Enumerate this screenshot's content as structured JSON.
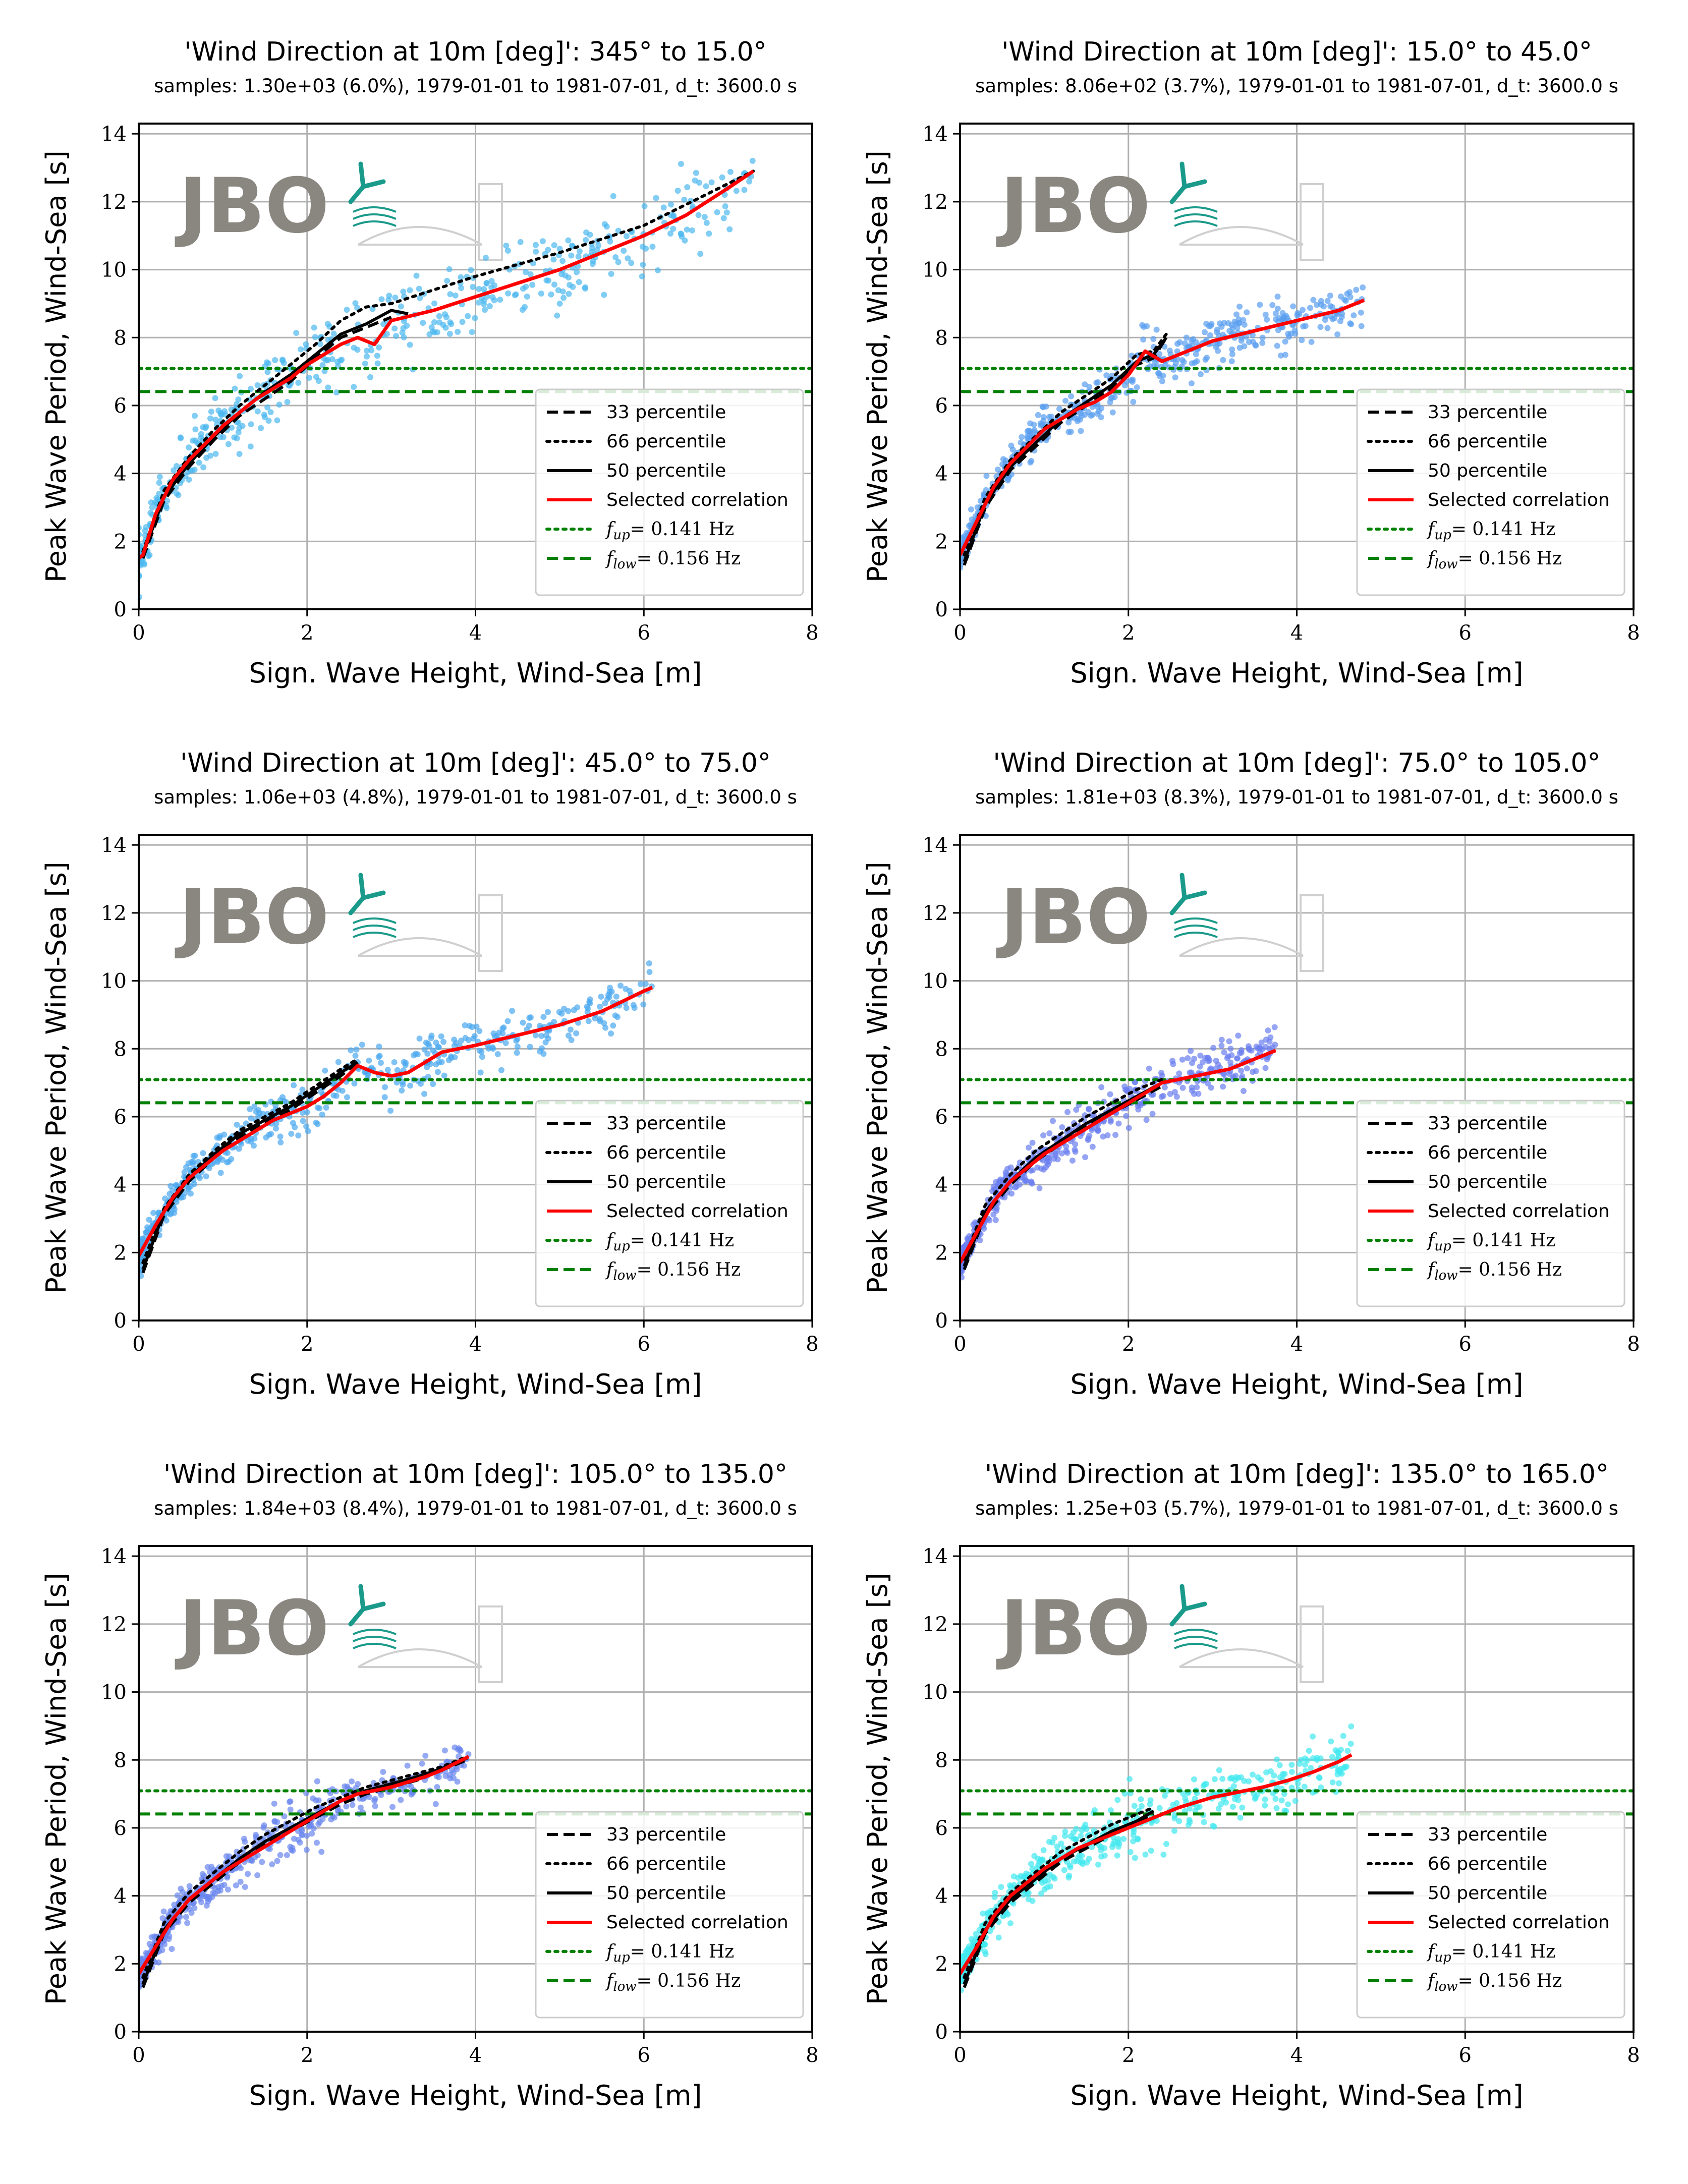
{
  "figure": {
    "common": {
      "xlabel": "Sign. Wave Height, Wind-Sea [m]",
      "ylabel": "Peak Wave Period, Wind-Sea [s]",
      "xlim": [
        0,
        8
      ],
      "ylim": [
        0,
        14.3
      ],
      "xticks": [
        "0",
        "2",
        "4",
        "6",
        "8"
      ],
      "yticks": [
        "0",
        "2",
        "4",
        "6",
        "8",
        "10",
        "12",
        "14"
      ],
      "grid": true,
      "legend_position": "lower right",
      "legend": [
        {
          "label": "33 percentile",
          "style": "dashed",
          "color": "#000000"
        },
        {
          "label": "66 percentile",
          "style": "dotted",
          "color": "#000000"
        },
        {
          "label": "50 percentile",
          "style": "solid",
          "color": "#000000"
        },
        {
          "label": "Selected correlation",
          "style": "solid",
          "color": "#ff0000"
        },
        {
          "label": "f_up= 0.141 Hz",
          "style": "dotted",
          "color": "#008000",
          "math": "up",
          "rest": "= 0.141 Hz"
        },
        {
          "label": "f_low= 0.156 Hz",
          "style": "dashed",
          "color": "#008000",
          "math": "low",
          "rest": "= 0.156 Hz"
        }
      ],
      "hlines": {
        "f_up_period": 7.09,
        "f_low_period": 6.41
      },
      "logo": {
        "text": "JBO",
        "color": "#8a8780",
        "accent": "#1a9a8a"
      }
    },
    "panels": [
      {
        "title": "'Wind Direction at 10m [deg]': 345° to 15.0°",
        "subtitle": "samples: 1.30e+03 (6.0%), 1979-01-01 to 1981-07-01, d_t: 3600.0 s",
        "scatter_color": "#4cb8f0",
        "scatter_spread": 0.55
      },
      {
        "title": "'Wind Direction at 10m [deg]': 15.0° to 45.0°",
        "subtitle": "samples: 8.06e+02 (3.7%), 1979-01-01 to 1981-07-01, d_t: 3600.0 s",
        "scatter_color": "#5a9ef0",
        "scatter_spread": 0.35
      },
      {
        "title": "'Wind Direction at 10m [deg]': 45.0° to 75.0°",
        "subtitle": "samples: 1.06e+03 (4.8%), 1979-01-01 to 1981-07-01, d_t: 3600.0 s",
        "scatter_color": "#4aa8f0",
        "scatter_spread": 0.35
      },
      {
        "title": "'Wind Direction at 10m [deg]': 75.0° to 105.0°",
        "subtitle": "samples: 1.81e+03 (8.3%), 1979-01-01 to 1981-07-01, d_t: 3600.0 s",
        "scatter_color": "#6a7ef0",
        "scatter_spread": 0.35
      },
      {
        "title": "'Wind Direction at 10m [deg]': 105.0° to 135.0°",
        "subtitle": "samples: 1.84e+03 (8.4%), 1979-01-01 to 1981-07-01, d_t: 3600.0 s",
        "scatter_color": "#6a86f0",
        "scatter_spread": 0.35
      },
      {
        "title": "'Wind Direction at 10m [deg]': 135.0° to 165.0°",
        "subtitle": "samples: 1.25e+03 (5.7%), 1979-01-01 to 1981-07-01, d_t: 3600.0 s",
        "scatter_color": "#40e8f0",
        "scatter_spread": 0.4
      }
    ]
  },
  "chart_data": [
    {
      "type": "scatter",
      "title": "'Wind Direction at 10m [deg]': 345° to 15.0°",
      "xlabel": "Sign. Wave Height, Wind-Sea [m]",
      "ylabel": "Peak Wave Period, Wind-Sea [s]",
      "xlim": [
        0,
        8
      ],
      "ylim": [
        0,
        14.3
      ],
      "series": [
        {
          "name": "33 percentile",
          "x": [
            0.05,
            0.3,
            0.6,
            0.9,
            1.2,
            1.5,
            1.8,
            2.1,
            2.4,
            2.7,
            3.0
          ],
          "y": [
            1.5,
            3.2,
            4.2,
            5.0,
            5.7,
            6.2,
            6.7,
            7.4,
            8.0,
            8.3,
            8.6
          ]
        },
        {
          "name": "66 percentile",
          "x": [
            0.05,
            0.3,
            0.6,
            0.9,
            1.2,
            1.5,
            1.8,
            2.1,
            2.4,
            2.7,
            3.0,
            4.0,
            5.0,
            6.0,
            7.3
          ],
          "y": [
            1.7,
            3.5,
            4.5,
            5.3,
            6.0,
            6.6,
            7.2,
            7.8,
            8.5,
            8.9,
            9.0,
            9.8,
            10.5,
            11.3,
            12.9
          ]
        },
        {
          "name": "50 percentile",
          "x": [
            0.05,
            0.3,
            0.6,
            0.9,
            1.2,
            1.5,
            1.8,
            2.1,
            2.4,
            2.7,
            3.0,
            3.2
          ],
          "y": [
            1.6,
            3.3,
            4.3,
            5.1,
            5.8,
            6.4,
            6.9,
            7.5,
            8.1,
            8.4,
            8.8,
            8.7
          ]
        },
        {
          "name": "Selected correlation",
          "x": [
            0.0,
            0.05,
            0.2,
            0.4,
            0.6,
            0.8,
            1.0,
            1.2,
            1.4,
            1.6,
            1.8,
            2.0,
            2.2,
            2.4,
            2.6,
            2.8,
            3.0,
            3.5,
            4.0,
            4.5,
            5.0,
            5.5,
            6.0,
            6.5,
            7.0,
            7.3
          ],
          "y": [
            1.5,
            1.6,
            2.8,
            3.8,
            4.4,
            4.9,
            5.4,
            5.8,
            6.2,
            6.5,
            6.8,
            7.2,
            7.5,
            7.8,
            8.0,
            7.8,
            8.5,
            8.8,
            9.2,
            9.6,
            10.0,
            10.5,
            11.0,
            11.6,
            12.4,
            12.9
          ]
        },
        {
          "name": "f_up= 0.141 Hz",
          "y_const": 7.09
        },
        {
          "name": "f_low= 0.156 Hz",
          "y_const": 6.41
        }
      ]
    },
    {
      "type": "scatter",
      "title": "'Wind Direction at 10m [deg]': 15.0° to 45.0°",
      "xlabel": "Sign. Wave Height, Wind-Sea [m]",
      "ylabel": "Peak Wave Period, Wind-Sea [s]",
      "xlim": [
        0,
        8
      ],
      "ylim": [
        0,
        14.3
      ],
      "series": [
        {
          "name": "33 percentile",
          "x": [
            0.05,
            0.3,
            0.6,
            0.9,
            1.2,
            1.5,
            1.8,
            2.1,
            2.3,
            2.45
          ],
          "y": [
            1.3,
            3.0,
            4.1,
            4.8,
            5.5,
            6.0,
            6.5,
            7.2,
            7.4,
            8.0
          ]
        },
        {
          "name": "66 percentile",
          "x": [
            0.05,
            0.3,
            0.6,
            0.9,
            1.2,
            1.5,
            1.8,
            2.1,
            2.3,
            2.45
          ],
          "y": [
            1.6,
            3.3,
            4.4,
            5.1,
            5.8,
            6.3,
            6.8,
            7.5,
            7.6,
            8.1
          ]
        },
        {
          "name": "50 percentile",
          "x": [
            0.05,
            0.3,
            0.6,
            0.9,
            1.2,
            1.5,
            1.8,
            2.1,
            2.3,
            2.45
          ],
          "y": [
            1.4,
            3.1,
            4.2,
            4.9,
            5.6,
            6.1,
            6.6,
            7.3,
            7.5,
            8.0
          ]
        },
        {
          "name": "Selected correlation",
          "x": [
            0.0,
            0.2,
            0.4,
            0.6,
            0.8,
            1.0,
            1.2,
            1.4,
            1.6,
            1.8,
            2.0,
            2.2,
            2.4,
            2.7,
            3.0,
            3.5,
            4.0,
            4.5,
            4.8
          ],
          "y": [
            1.6,
            2.6,
            3.6,
            4.3,
            4.8,
            5.3,
            5.6,
            5.9,
            6.1,
            6.4,
            6.9,
            7.6,
            7.3,
            7.6,
            7.9,
            8.2,
            8.5,
            8.8,
            9.1
          ]
        },
        {
          "name": "f_up= 0.141 Hz",
          "y_const": 7.09
        },
        {
          "name": "f_low= 0.156 Hz",
          "y_const": 6.41
        }
      ]
    },
    {
      "type": "scatter",
      "title": "'Wind Direction at 10m [deg]': 45.0° to 75.0°",
      "xlabel": "Sign. Wave Height, Wind-Sea [m]",
      "ylabel": "Peak Wave Period, Wind-Sea [s]",
      "xlim": [
        0,
        8
      ],
      "ylim": [
        0,
        14.3
      ],
      "series": [
        {
          "name": "33 percentile",
          "x": [
            0.05,
            0.3,
            0.6,
            0.9,
            1.2,
            1.5,
            1.8,
            2.1,
            2.4,
            2.6
          ],
          "y": [
            1.4,
            3.1,
            4.1,
            4.8,
            5.4,
            5.8,
            6.2,
            6.7,
            7.2,
            7.6
          ]
        },
        {
          "name": "66 percentile",
          "x": [
            0.05,
            0.3,
            0.6,
            0.9,
            1.2,
            1.5,
            1.8,
            2.1,
            2.4,
            2.6
          ],
          "y": [
            1.7,
            3.3,
            4.3,
            5.0,
            5.6,
            6.0,
            6.4,
            6.9,
            7.4,
            7.7
          ]
        },
        {
          "name": "50 percentile",
          "x": [
            0.05,
            0.3,
            0.6,
            0.9,
            1.2,
            1.5,
            1.8,
            2.1,
            2.4,
            2.6
          ],
          "y": [
            1.5,
            3.2,
            4.2,
            4.9,
            5.5,
            5.9,
            6.3,
            6.8,
            7.3,
            7.6
          ]
        },
        {
          "name": "Selected correlation",
          "x": [
            0.0,
            0.2,
            0.4,
            0.6,
            0.8,
            1.0,
            1.2,
            1.4,
            1.6,
            1.8,
            2.0,
            2.2,
            2.4,
            2.6,
            2.8,
            3.0,
            3.2,
            3.4,
            3.6,
            3.8,
            4.0,
            4.5,
            5.0,
            5.5,
            6.0,
            6.1
          ],
          "y": [
            1.9,
            2.8,
            3.6,
            4.2,
            4.6,
            5.0,
            5.3,
            5.6,
            5.9,
            6.1,
            6.3,
            6.6,
            7.0,
            7.5,
            7.3,
            7.2,
            7.3,
            7.6,
            7.9,
            8.0,
            8.1,
            8.4,
            8.7,
            9.1,
            9.7,
            9.8
          ]
        },
        {
          "name": "f_up= 0.141 Hz",
          "y_const": 7.09
        },
        {
          "name": "f_low= 0.156 Hz",
          "y_const": 6.41
        }
      ]
    },
    {
      "type": "scatter",
      "title": "'Wind Direction at 10m [deg]': 75.0° to 105.0°",
      "xlabel": "Sign. Wave Height, Wind-Sea [m]",
      "ylabel": "Peak Wave Period, Wind-Sea [s]",
      "xlim": [
        0,
        8
      ],
      "ylim": [
        0,
        14.3
      ],
      "series": [
        {
          "name": "33 percentile",
          "x": [
            0.05,
            0.3,
            0.6,
            0.9,
            1.2,
            1.5,
            1.8,
            2.1,
            2.4
          ],
          "y": [
            1.5,
            3.1,
            4.0,
            4.7,
            5.2,
            5.7,
            6.1,
            6.5,
            6.9
          ]
        },
        {
          "name": "66 percentile",
          "x": [
            0.05,
            0.3,
            0.6,
            0.9,
            1.2,
            1.5,
            1.8,
            2.1,
            2.4
          ],
          "y": [
            1.8,
            3.4,
            4.3,
            5.0,
            5.5,
            6.0,
            6.4,
            6.8,
            7.1
          ]
        },
        {
          "name": "50 percentile",
          "x": [
            0.05,
            0.3,
            0.6,
            0.9,
            1.2,
            1.5,
            1.8,
            2.1,
            2.4
          ],
          "y": [
            1.6,
            3.2,
            4.1,
            4.8,
            5.3,
            5.8,
            6.2,
            6.6,
            7.0
          ]
        },
        {
          "name": "Selected correlation",
          "x": [
            0.0,
            0.2,
            0.4,
            0.6,
            0.8,
            1.0,
            1.2,
            1.4,
            1.6,
            1.8,
            2.0,
            2.2,
            2.4,
            2.6,
            2.8,
            3.0,
            3.2,
            3.4,
            3.6,
            3.75
          ],
          "y": [
            1.7,
            2.6,
            3.5,
            4.1,
            4.5,
            4.9,
            5.2,
            5.5,
            5.8,
            6.1,
            6.4,
            6.7,
            7.0,
            7.1,
            7.2,
            7.3,
            7.4,
            7.6,
            7.8,
            7.95
          ]
        },
        {
          "name": "f_up= 0.141 Hz",
          "y_const": 7.09
        },
        {
          "name": "f_low= 0.156 Hz",
          "y_const": 6.41
        }
      ]
    },
    {
      "type": "scatter",
      "title": "'Wind Direction at 10m [deg]': 105.0° to 135.0°",
      "xlabel": "Sign. Wave Height, Wind-Sea [m]",
      "ylabel": "Peak Wave Period, Wind-Sea [s]",
      "xlim": [
        0,
        8
      ],
      "ylim": [
        0,
        14.3
      ],
      "series": [
        {
          "name": "33 percentile",
          "x": [
            0.05,
            0.3,
            0.6,
            0.9,
            1.2,
            1.5,
            1.8,
            2.1,
            2.4,
            2.7,
            3.0,
            3.3,
            3.6,
            3.9
          ],
          "y": [
            1.3,
            2.9,
            3.8,
            4.4,
            5.0,
            5.5,
            5.9,
            6.3,
            6.7,
            7.0,
            7.2,
            7.4,
            7.7,
            8.0
          ]
        },
        {
          "name": "66 percentile",
          "x": [
            0.05,
            0.3,
            0.6,
            0.9,
            1.2,
            1.5,
            1.8,
            2.1,
            2.4,
            2.7,
            3.0,
            3.3,
            3.6,
            3.9
          ],
          "y": [
            1.6,
            3.2,
            4.1,
            4.7,
            5.3,
            5.8,
            6.2,
            6.6,
            6.9,
            7.2,
            7.4,
            7.6,
            7.8,
            8.1
          ]
        },
        {
          "name": "50 percentile",
          "x": [
            0.05,
            0.3,
            0.6,
            0.9,
            1.2,
            1.5,
            1.8,
            2.1,
            2.4,
            2.7,
            3.0,
            3.3,
            3.6,
            3.9
          ],
          "y": [
            1.4,
            3.0,
            3.9,
            4.5,
            5.1,
            5.6,
            6.0,
            6.4,
            6.8,
            7.1,
            7.3,
            7.5,
            7.75,
            8.05
          ]
        },
        {
          "name": "Selected correlation",
          "x": [
            0.0,
            0.2,
            0.4,
            0.6,
            0.8,
            1.0,
            1.2,
            1.4,
            1.6,
            1.8,
            2.0,
            2.2,
            2.4,
            2.6,
            2.8,
            3.0,
            3.2,
            3.4,
            3.6,
            3.8,
            3.92
          ],
          "y": [
            1.7,
            2.5,
            3.3,
            3.9,
            4.3,
            4.7,
            5.0,
            5.3,
            5.6,
            5.9,
            6.2,
            6.5,
            6.8,
            7.0,
            7.1,
            7.2,
            7.35,
            7.5,
            7.7,
            7.95,
            8.1
          ]
        },
        {
          "name": "f_up= 0.141 Hz",
          "y_const": 7.09
        },
        {
          "name": "f_low= 0.156 Hz",
          "y_const": 6.41
        }
      ]
    },
    {
      "type": "scatter",
      "title": "'Wind Direction at 10m [deg]': 135.0° to 165.0°",
      "xlabel": "Sign. Wave Height, Wind-Sea [m]",
      "ylabel": "Peak Wave Period, Wind-Sea [s]",
      "xlim": [
        0,
        8
      ],
      "ylim": [
        0,
        14.3
      ],
      "series": [
        {
          "name": "33 percentile",
          "x": [
            0.05,
            0.3,
            0.6,
            0.9,
            1.2,
            1.5,
            1.8,
            2.1,
            2.3
          ],
          "y": [
            1.3,
            2.9,
            3.8,
            4.4,
            5.0,
            5.4,
            5.8,
            6.1,
            6.4
          ]
        },
        {
          "name": "66 percentile",
          "x": [
            0.05,
            0.3,
            0.6,
            0.9,
            1.2,
            1.5,
            1.8,
            2.1,
            2.3
          ],
          "y": [
            1.6,
            3.2,
            4.1,
            4.7,
            5.3,
            5.7,
            6.1,
            6.4,
            6.6
          ]
        },
        {
          "name": "50 percentile",
          "x": [
            0.05,
            0.3,
            0.6,
            0.9,
            1.2,
            1.5,
            1.8,
            2.1,
            2.3
          ],
          "y": [
            1.4,
            3.0,
            3.9,
            4.5,
            5.1,
            5.5,
            5.9,
            6.2,
            6.5
          ]
        },
        {
          "name": "Selected correlation",
          "x": [
            0.0,
            0.2,
            0.4,
            0.6,
            0.8,
            1.0,
            1.2,
            1.4,
            1.6,
            1.8,
            2.0,
            2.2,
            2.4,
            2.6,
            2.8,
            3.0,
            3.3,
            3.6,
            3.9,
            4.2,
            4.5,
            4.65
          ],
          "y": [
            1.7,
            2.5,
            3.4,
            4.0,
            4.4,
            4.8,
            5.1,
            5.4,
            5.6,
            5.8,
            6.0,
            6.2,
            6.4,
            6.6,
            6.75,
            6.9,
            7.05,
            7.2,
            7.4,
            7.65,
            7.95,
            8.15
          ]
        },
        {
          "name": "f_up= 0.141 Hz",
          "y_const": 7.09
        },
        {
          "name": "f_low= 0.156 Hz",
          "y_const": 6.41
        }
      ]
    }
  ]
}
